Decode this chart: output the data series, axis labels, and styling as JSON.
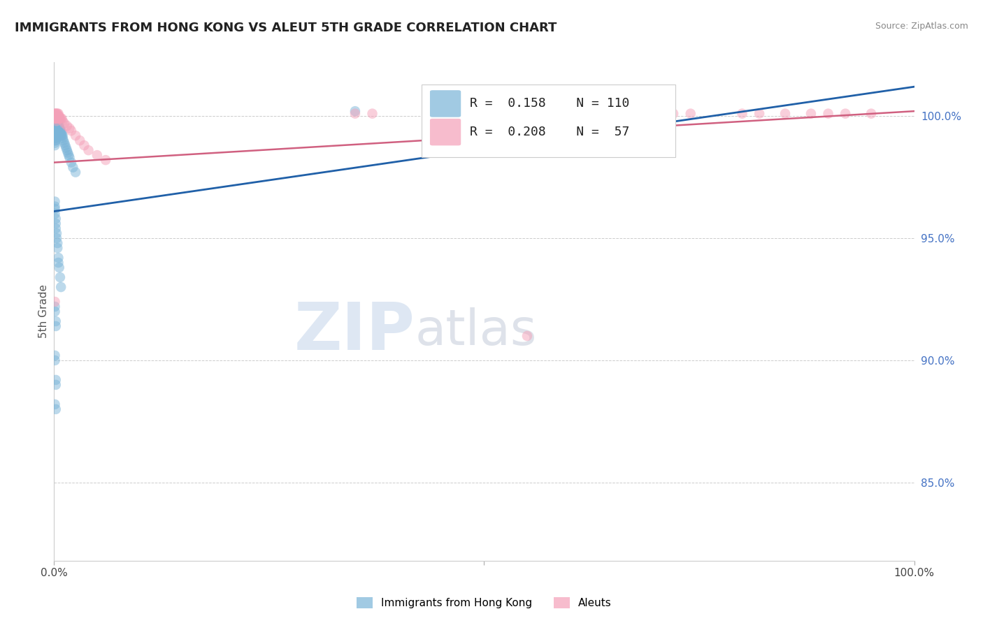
{
  "title": "IMMIGRANTS FROM HONG KONG VS ALEUT 5TH GRADE CORRELATION CHART",
  "source": "Source: ZipAtlas.com",
  "ylabel": "5th Grade",
  "xlim": [
    0,
    1.0
  ],
  "ylim": [
    0.818,
    1.022
  ],
  "xtick_positions": [
    0.0,
    0.5,
    1.0
  ],
  "xticklabels": [
    "0.0%",
    "",
    "100.0%"
  ],
  "ytick_positions": [
    0.85,
    0.9,
    0.95,
    1.0
  ],
  "yticklabels": [
    "85.0%",
    "90.0%",
    "95.0%",
    "100.0%"
  ],
  "blue_R": 0.158,
  "blue_N": 110,
  "pink_R": 0.208,
  "pink_N": 57,
  "blue_color": "#7ab4d8",
  "pink_color": "#f4a0b8",
  "blue_line_color": "#2060a8",
  "pink_line_color": "#d06080",
  "legend_label_blue": "Immigrants from Hong Kong",
  "legend_label_pink": "Aleuts",
  "watermark_zip": "ZIP",
  "watermark_atlas": "atlas",
  "blue_line_x": [
    0.0,
    1.0
  ],
  "blue_line_y": [
    0.961,
    1.012
  ],
  "pink_line_x": [
    0.0,
    1.0
  ],
  "pink_line_y": [
    0.981,
    1.002
  ],
  "blue_dots_x": [
    0.001,
    0.001,
    0.001,
    0.001,
    0.001,
    0.001,
    0.001,
    0.001,
    0.001,
    0.001,
    0.001,
    0.001,
    0.001,
    0.001,
    0.001,
    0.001,
    0.001,
    0.001,
    0.001,
    0.001,
    0.002,
    0.002,
    0.002,
    0.002,
    0.002,
    0.002,
    0.002,
    0.002,
    0.002,
    0.002,
    0.002,
    0.002,
    0.002,
    0.002,
    0.002,
    0.003,
    0.003,
    0.003,
    0.003,
    0.003,
    0.003,
    0.003,
    0.003,
    0.003,
    0.003,
    0.004,
    0.004,
    0.004,
    0.004,
    0.004,
    0.004,
    0.004,
    0.005,
    0.005,
    0.005,
    0.005,
    0.005,
    0.006,
    0.006,
    0.006,
    0.006,
    0.007,
    0.007,
    0.007,
    0.008,
    0.008,
    0.008,
    0.009,
    0.009,
    0.01,
    0.01,
    0.011,
    0.012,
    0.013,
    0.014,
    0.015,
    0.016,
    0.017,
    0.018,
    0.02,
    0.022,
    0.025,
    0.001,
    0.001,
    0.001,
    0.001,
    0.002,
    0.002,
    0.002,
    0.003,
    0.003,
    0.004,
    0.004,
    0.005,
    0.005,
    0.006,
    0.007,
    0.008,
    0.001,
    0.001,
    0.002,
    0.002,
    0.001,
    0.001,
    0.002,
    0.002,
    0.001,
    0.002,
    0.35
  ],
  "blue_dots_y": [
    1.0,
    0.999,
    0.999,
    0.998,
    0.998,
    0.997,
    0.997,
    0.996,
    0.996,
    0.995,
    0.995,
    0.994,
    0.994,
    0.993,
    0.993,
    0.992,
    0.991,
    0.99,
    0.989,
    0.988,
    1.0,
    0.999,
    0.999,
    0.998,
    0.998,
    0.997,
    0.997,
    0.996,
    0.996,
    0.995,
    0.994,
    0.993,
    0.992,
    0.991,
    0.99,
    0.999,
    0.998,
    0.998,
    0.997,
    0.997,
    0.996,
    0.995,
    0.994,
    0.993,
    0.992,
    0.998,
    0.998,
    0.997,
    0.996,
    0.995,
    0.994,
    0.993,
    0.997,
    0.996,
    0.995,
    0.994,
    0.993,
    0.996,
    0.995,
    0.994,
    0.993,
    0.995,
    0.994,
    0.993,
    0.994,
    0.993,
    0.992,
    0.993,
    0.992,
    0.992,
    0.991,
    0.99,
    0.989,
    0.988,
    0.987,
    0.986,
    0.985,
    0.984,
    0.983,
    0.981,
    0.979,
    0.977,
    0.965,
    0.963,
    0.962,
    0.96,
    0.958,
    0.956,
    0.954,
    0.952,
    0.95,
    0.948,
    0.946,
    0.942,
    0.94,
    0.938,
    0.934,
    0.93,
    0.922,
    0.92,
    0.916,
    0.914,
    0.902,
    0.9,
    0.892,
    0.89,
    0.882,
    0.88,
    1.002
  ],
  "pink_dots_x": [
    0.001,
    0.001,
    0.001,
    0.001,
    0.001,
    0.001,
    0.002,
    0.002,
    0.002,
    0.002,
    0.002,
    0.003,
    0.003,
    0.003,
    0.003,
    0.004,
    0.004,
    0.004,
    0.005,
    0.005,
    0.005,
    0.006,
    0.006,
    0.007,
    0.008,
    0.009,
    0.01,
    0.012,
    0.015,
    0.018,
    0.02,
    0.025,
    0.03,
    0.035,
    0.04,
    0.05,
    0.06,
    0.35,
    0.37,
    0.44,
    0.46,
    0.48,
    0.5,
    0.52,
    0.55,
    0.58,
    0.62,
    0.65,
    0.7,
    0.72,
    0.74,
    0.8,
    0.82,
    0.85,
    0.88,
    0.9,
    0.92,
    0.95,
    0.001,
    0.55
  ],
  "pink_dots_y": [
    1.001,
    1.001,
    1.0,
    1.0,
    0.999,
    0.999,
    1.001,
    1.0,
    1.0,
    0.999,
    0.999,
    1.001,
    1.0,
    0.999,
    0.998,
    1.001,
    1.0,
    0.999,
    1.001,
    1.0,
    0.999,
    1.0,
    0.999,
    0.999,
    0.999,
    0.999,
    0.998,
    0.997,
    0.996,
    0.995,
    0.994,
    0.992,
    0.99,
    0.988,
    0.986,
    0.984,
    0.982,
    1.001,
    1.001,
    1.001,
    1.001,
    1.001,
    1.001,
    1.001,
    1.001,
    1.001,
    1.001,
    1.001,
    1.001,
    1.001,
    1.001,
    1.001,
    1.001,
    1.001,
    1.001,
    1.001,
    1.001,
    1.001,
    0.924,
    0.91
  ]
}
